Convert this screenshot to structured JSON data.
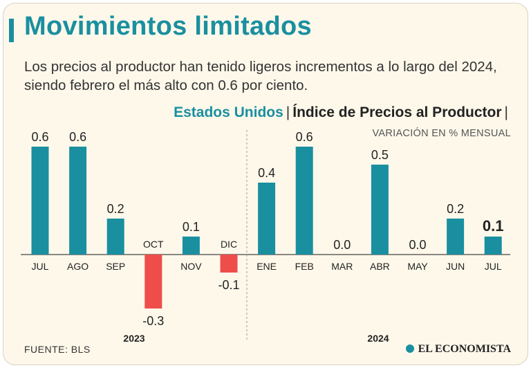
{
  "header": {
    "title": "Movimientos limitados",
    "subtitle": "Los precios al productor han tenido ligeros incrementos a lo largo del 2024, siendo febrero el más alto con 0.6 por ciento.",
    "country": "Estados Unidos",
    "separator": "|",
    "index_name": "Índice de Precios al Productor",
    "units": "VARIACIÓN EN % MENSUAL"
  },
  "footer": {
    "source": "FUENTE: BLS",
    "logo_text": "EL ECONOMISTA"
  },
  "colors": {
    "positive": "#1a8fa0",
    "negative": "#ef4d4a",
    "accent": "#1a8fa0"
  },
  "chart_data": {
    "type": "bar",
    "title": "Índice de Precios al Productor",
    "ylabel": "VARIACIÓN EN % MENSUAL",
    "categories": [
      "JUL",
      "AGO",
      "SEP",
      "OCT",
      "NOV",
      "DIC",
      "ENE",
      "FEB",
      "MAR",
      "ABR",
      "MAY",
      "JUN",
      "JUL"
    ],
    "values": [
      0.6,
      0.6,
      0.2,
      -0.3,
      0.1,
      -0.1,
      0.4,
      0.6,
      0.0,
      0.5,
      0.0,
      0.2,
      0.1
    ],
    "value_labels": [
      "0.6",
      "0.6",
      "0.2",
      "-0.3",
      "0.1",
      "-0.1",
      "0.4",
      "0.6",
      "0.0",
      "0.5",
      "0.0",
      "0.2",
      "0.1"
    ],
    "highlighted_index": 12,
    "groups": [
      {
        "label": "2023",
        "start": 0,
        "end": 5
      },
      {
        "label": "2024",
        "start": 6,
        "end": 12
      }
    ],
    "ylim": [
      -0.3,
      0.6
    ],
    "grid": false
  }
}
